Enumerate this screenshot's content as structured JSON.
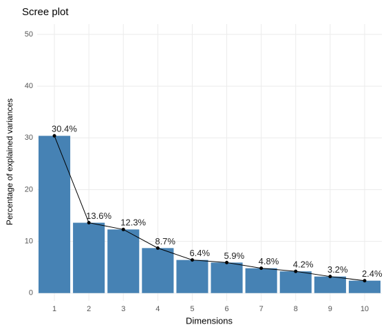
{
  "chart_data": {
    "type": "bar",
    "title": "Scree plot",
    "x_label": "Dimensions",
    "y_label": "Percentage of explained variances",
    "categories": [
      "1",
      "2",
      "3",
      "4",
      "5",
      "6",
      "7",
      "8",
      "9",
      "10"
    ],
    "values": [
      30.4,
      13.6,
      12.3,
      8.7,
      6.4,
      5.9,
      4.8,
      4.2,
      3.2,
      2.4
    ],
    "value_labels": [
      "30.4%",
      "13.6%",
      "12.3%",
      "8.7%",
      "6.4%",
      "5.9%",
      "4.8%",
      "4.2%",
      "3.2%",
      "2.4%"
    ],
    "color": "#4682b4",
    "line_color": "#000000",
    "ylim": [
      -1.5,
      52
    ],
    "yticks": [
      0,
      10,
      20,
      30,
      40,
      50
    ],
    "grid": true
  }
}
